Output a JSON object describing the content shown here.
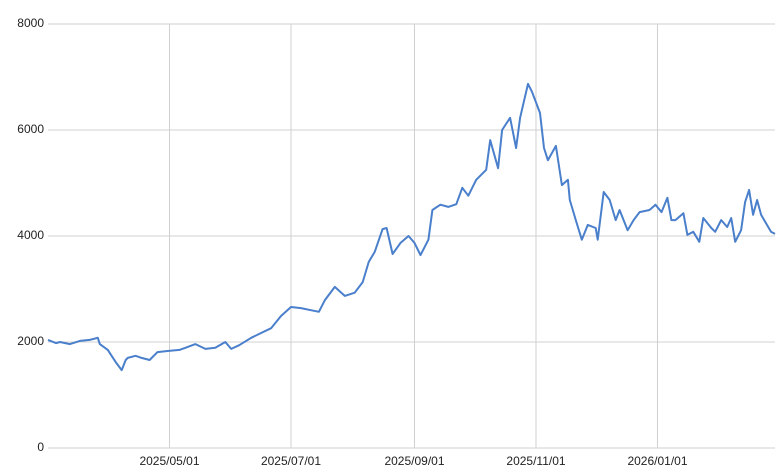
{
  "chart_data": {
    "type": "line",
    "color": "#4a7fcb",
    "grid": true,
    "xlim": [
      "2025-03-01",
      "2026-03-01"
    ],
    "xticks": [
      {
        "value": "2025-05-01",
        "label": "2025/05/01"
      },
      {
        "value": "2025-07-01",
        "label": "2025/07/01"
      },
      {
        "value": "2025-09-01",
        "label": "2025/09/01"
      },
      {
        "value": "2025-11-01",
        "label": "2025/11/01"
      },
      {
        "value": "2026-01-01",
        "label": "2026/01/01"
      }
    ],
    "ylim": [
      0,
      8000
    ],
    "yticks": [
      0,
      2000,
      4000,
      6000,
      8000
    ],
    "x": [
      "2025-03-01",
      "2025-03-05",
      "2025-03-07",
      "2025-03-12",
      "2025-03-17",
      "2025-03-22",
      "2025-03-26",
      "2025-03-27",
      "2025-03-31",
      "2025-04-04",
      "2025-04-07",
      "2025-04-09",
      "2025-04-10",
      "2025-04-14",
      "2025-04-17",
      "2025-04-21",
      "2025-04-25",
      "2025-04-30",
      "2025-05-06",
      "2025-05-09",
      "2025-05-14",
      "2025-05-19",
      "2025-05-24",
      "2025-05-29",
      "2025-06-01",
      "2025-06-05",
      "2025-06-11",
      "2025-06-16",
      "2025-06-21",
      "2025-06-26",
      "2025-07-01",
      "2025-07-06",
      "2025-07-11",
      "2025-07-15",
      "2025-07-18",
      "2025-07-23",
      "2025-07-28",
      "2025-08-02",
      "2025-08-06",
      "2025-08-09",
      "2025-08-12",
      "2025-08-16",
      "2025-08-18",
      "2025-08-21",
      "2025-08-25",
      "2025-08-29",
      "2025-09-01",
      "2025-09-04",
      "2025-09-08",
      "2025-09-10",
      "2025-09-14",
      "2025-09-18",
      "2025-09-22",
      "2025-09-25",
      "2025-09-28",
      "2025-10-02",
      "2025-10-07",
      "2025-10-09",
      "2025-10-13",
      "2025-10-15",
      "2025-10-19",
      "2025-10-22",
      "2025-10-24",
      "2025-10-28",
      "2025-10-30",
      "2025-11-03",
      "2025-11-05",
      "2025-11-07",
      "2025-11-11",
      "2025-11-14",
      "2025-11-17",
      "2025-11-18",
      "2025-11-21",
      "2025-11-24",
      "2025-11-27",
      "2025-12-01",
      "2025-12-02",
      "2025-12-05",
      "2025-12-08",
      "2025-12-11",
      "2025-12-13",
      "2025-12-17",
      "2025-12-20",
      "2025-12-23",
      "2025-12-28",
      "2025-12-31",
      "2026-01-03",
      "2026-01-06",
      "2026-01-08",
      "2026-01-10",
      "2026-01-14",
      "2026-01-16",
      "2026-01-19",
      "2026-01-22",
      "2026-01-24",
      "2026-01-28",
      "2026-01-30",
      "2026-02-02",
      "2026-02-05",
      "2026-02-07",
      "2026-02-09",
      "2026-02-12",
      "2026-02-14",
      "2026-02-16",
      "2026-02-18",
      "2026-02-20",
      "2026-02-22",
      "2026-02-27",
      "2026-03-01"
    ],
    "values": [
      2040,
      1980,
      2000,
      1960,
      2020,
      2040,
      2080,
      1960,
      1850,
      1620,
      1470,
      1660,
      1700,
      1740,
      1700,
      1660,
      1810,
      1830,
      1850,
      1890,
      1960,
      1870,
      1890,
      2000,
      1870,
      1940,
      2080,
      2170,
      2260,
      2490,
      2660,
      2640,
      2600,
      2570,
      2790,
      3040,
      2870,
      2930,
      3130,
      3510,
      3700,
      4130,
      4150,
      3660,
      3870,
      4000,
      3870,
      3640,
      3930,
      4490,
      4590,
      4550,
      4600,
      4910,
      4760,
      5060,
      5250,
      5810,
      5280,
      6000,
      6230,
      5660,
      6230,
      6870,
      6720,
      6320,
      5660,
      5430,
      5700,
      4960,
      5060,
      4680,
      4300,
      3930,
      4210,
      4150,
      3930,
      4830,
      4680,
      4300,
      4490,
      4110,
      4300,
      4450,
      4490,
      4590,
      4450,
      4720,
      4300,
      4300,
      4430,
      4020,
      4080,
      3890,
      4340,
      4150,
      4080,
      4300,
      4170,
      4340,
      3890,
      4110,
      4640,
      4870,
      4400,
      4680,
      4400,
      4080,
      4040
    ]
  }
}
